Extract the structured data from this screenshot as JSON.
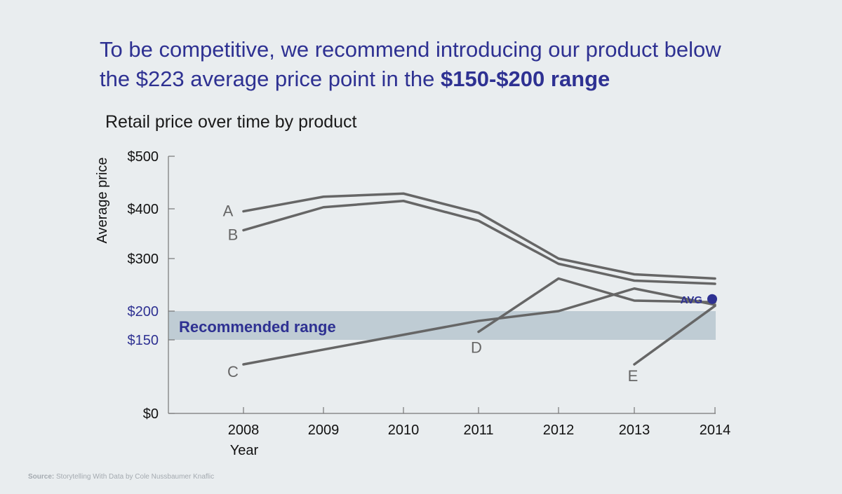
{
  "headline": {
    "line1": "To be competitive, we recommend introducing our product below",
    "line2_prefix": "the $223 average price point in the ",
    "line2_bold": "$150-$200 range"
  },
  "source": {
    "label": "Source:",
    "text": "Storytelling With Data by Cole Nussbaumer Knaflic"
  },
  "colors": {
    "accent": "#2e3192",
    "series": "#666666",
    "band": "#bfccd4",
    "axis": "#777777",
    "background": "#e9edef"
  },
  "chart_data": {
    "type": "line",
    "title": "Retail price over time by product",
    "xlabel": "Year",
    "ylabel": "Average price",
    "categories": [
      "2008",
      "2009",
      "2010",
      "2011",
      "2012",
      "2013",
      "2014"
    ],
    "y_ticks": [
      {
        "value": 0,
        "label": "$0"
      },
      {
        "value": 150,
        "label": "$150"
      },
      {
        "value": 200,
        "label": "$200"
      },
      {
        "value": 300,
        "label": "$300"
      },
      {
        "value": 400,
        "label": "$400"
      },
      {
        "value": 500,
        "label": "$500"
      }
    ],
    "highlight_ticks": [
      150,
      200
    ],
    "ylim": [
      0,
      500
    ],
    "series": [
      {
        "name": "A",
        "x": [
          2008,
          2009,
          2010,
          2011,
          2012,
          2013,
          2014
        ],
        "values": [
          395,
          423,
          429,
          392,
          300,
          270,
          262
        ]
      },
      {
        "name": "B",
        "x": [
          2008,
          2009,
          2010,
          2011,
          2012,
          2013,
          2014
        ],
        "values": [
          357,
          403,
          415,
          376,
          290,
          258,
          252
        ]
      },
      {
        "name": "C",
        "x": [
          2008,
          2011,
          2012,
          2013,
          2014
        ],
        "values": [
          100,
          183,
          200,
          243,
          212
        ]
      },
      {
        "name": "D",
        "x": [
          2011,
          2012,
          2013,
          2014
        ],
        "values": [
          164,
          262,
          220,
          217
        ]
      },
      {
        "name": "E",
        "x": [
          2013,
          2014
        ],
        "values": [
          100,
          210
        ]
      }
    ],
    "recommended_range": {
      "label": "Recommended range",
      "min": 150,
      "max": 200
    },
    "average": {
      "label": "AVG",
      "value": 223,
      "x": 2014
    },
    "grid": false,
    "legend": "direct labels at line starts"
  }
}
